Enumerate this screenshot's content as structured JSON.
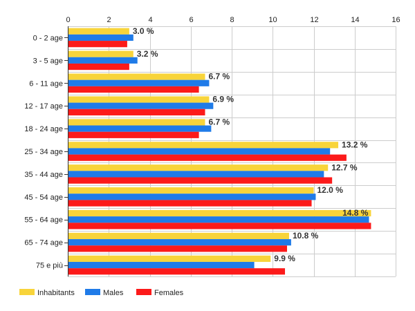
{
  "chart_data": {
    "type": "bar",
    "orientation": "horizontal",
    "title": "",
    "xlabel": "",
    "ylabel": "",
    "xlim": [
      0,
      16
    ],
    "x_ticks": [
      "0",
      "2",
      "4",
      "6",
      "8",
      "10",
      "12",
      "14",
      "16"
    ],
    "x_tick_values": [
      0,
      2,
      4,
      6,
      8,
      10,
      12,
      14,
      16
    ],
    "grid": true,
    "legend_position": "bottom-left",
    "categories": [
      "0 - 2 age",
      "3 - 5 age",
      "6 - 11 age",
      "12 - 17 age",
      "18 - 24 age",
      "25 - 34 age",
      "35 - 44 age",
      "45 - 54 age",
      "55 - 64 age",
      "65 - 74 age",
      "75 e più"
    ],
    "series": [
      {
        "name": "Inhabitants",
        "color": "#f8d43a",
        "values": [
          3.0,
          3.2,
          6.7,
          6.9,
          6.7,
          13.2,
          12.7,
          12.0,
          14.8,
          10.8,
          9.9
        ]
      },
      {
        "name": "Males",
        "color": "#1f7be8",
        "values": [
          3.2,
          3.4,
          6.9,
          7.1,
          7.0,
          12.8,
          12.5,
          12.1,
          14.7,
          10.9,
          9.1
        ]
      },
      {
        "name": "Females",
        "color": "#fc1a1a",
        "values": [
          2.9,
          3.0,
          6.4,
          6.7,
          6.4,
          13.6,
          12.9,
          11.9,
          14.8,
          10.7,
          10.6
        ]
      }
    ],
    "data_labels": [
      "3.0 %",
      "3.2 %",
      "6.7 %",
      "6.9 %",
      "6.7 %",
      "13.2 %",
      "12.7 %",
      "12.0 %",
      "14.8 %",
      "10.8 %",
      "9.9 %"
    ]
  }
}
